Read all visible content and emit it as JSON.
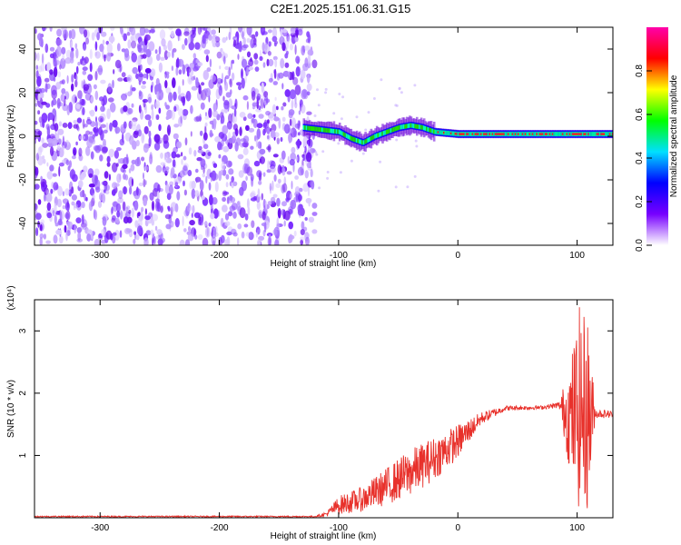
{
  "title": "C2E1.2025.151.06.31.G15",
  "chart_data": [
    {
      "type": "heatmap",
      "xlabel": "Height of straight line (km)",
      "ylabel": "Frequency (Hz)",
      "xlim": [
        -355,
        130
      ],
      "ylim": [
        -50,
        50
      ],
      "xticks": [
        -300,
        -200,
        -100,
        0,
        100
      ],
      "yticks": [
        -40,
        -20,
        0,
        20,
        40
      ],
      "noise_region_x": [
        -355,
        -120
      ],
      "ridge": [
        {
          "x": -130,
          "y": 4
        },
        {
          "x": -115,
          "y": 3
        },
        {
          "x": -100,
          "y": 2
        },
        {
          "x": -90,
          "y": -1
        },
        {
          "x": -80,
          "y": -3
        },
        {
          "x": -70,
          "y": 0
        },
        {
          "x": -60,
          "y": 2
        },
        {
          "x": -50,
          "y": 4
        },
        {
          "x": -40,
          "y": 5
        },
        {
          "x": -30,
          "y": 4
        },
        {
          "x": -20,
          "y": 2
        },
        {
          "x": 0,
          "y": 1
        },
        {
          "x": 30,
          "y": 1
        },
        {
          "x": 60,
          "y": 1
        },
        {
          "x": 90,
          "y": 1
        },
        {
          "x": 105,
          "y": 1
        },
        {
          "x": 130,
          "y": 1
        }
      ],
      "colorbar": {
        "label": "Normalized spectral amplitude",
        "ticks": [
          0.0,
          0.2,
          0.4,
          0.6,
          0.8
        ],
        "range": [
          0,
          1
        ],
        "colors": [
          "#ffffff",
          "#7700ff",
          "#0000ff",
          "#00e0ff",
          "#00ff00",
          "#ffff00",
          "#ff0000",
          "#ff00aa"
        ]
      },
      "line_color": "#ff0000"
    },
    {
      "type": "line",
      "xlabel": "Height of straight line (km)",
      "ylabel": "SNR (10 * v/v)",
      "scale_label": "(x10⁴)",
      "xlim": [
        -355,
        130
      ],
      "ylim": [
        0,
        3.5
      ],
      "xticks": [
        -300,
        -200,
        -100,
        0,
        100
      ],
      "yticks": [
        1,
        2,
        3
      ],
      "color": "#e8312b",
      "envelope": [
        {
          "x": -355,
          "lo": 0.01,
          "hi": 0.03
        },
        {
          "x": -120,
          "lo": 0.01,
          "hi": 0.03
        },
        {
          "x": -110,
          "lo": 0.02,
          "hi": 0.1
        },
        {
          "x": -100,
          "lo": 0.05,
          "hi": 0.35
        },
        {
          "x": -80,
          "lo": 0.1,
          "hi": 0.5
        },
        {
          "x": -60,
          "lo": 0.2,
          "hi": 0.8
        },
        {
          "x": -40,
          "lo": 0.35,
          "hi": 1.1
        },
        {
          "x": -20,
          "lo": 0.6,
          "hi": 1.3
        },
        {
          "x": 0,
          "lo": 0.95,
          "hi": 1.5
        },
        {
          "x": 20,
          "lo": 1.5,
          "hi": 1.7
        },
        {
          "x": 40,
          "lo": 1.72,
          "hi": 1.8
        },
        {
          "x": 70,
          "lo": 1.74,
          "hi": 1.8
        },
        {
          "x": 85,
          "lo": 1.76,
          "hi": 1.86
        },
        {
          "x": 95,
          "lo": 0.6,
          "hi": 2.6
        },
        {
          "x": 102,
          "lo": 0.1,
          "hi": 3.4
        },
        {
          "x": 110,
          "lo": 0.1,
          "hi": 3.2
        },
        {
          "x": 115,
          "lo": 1.6,
          "hi": 1.75
        },
        {
          "x": 130,
          "lo": 1.6,
          "hi": 1.72
        }
      ]
    }
  ]
}
